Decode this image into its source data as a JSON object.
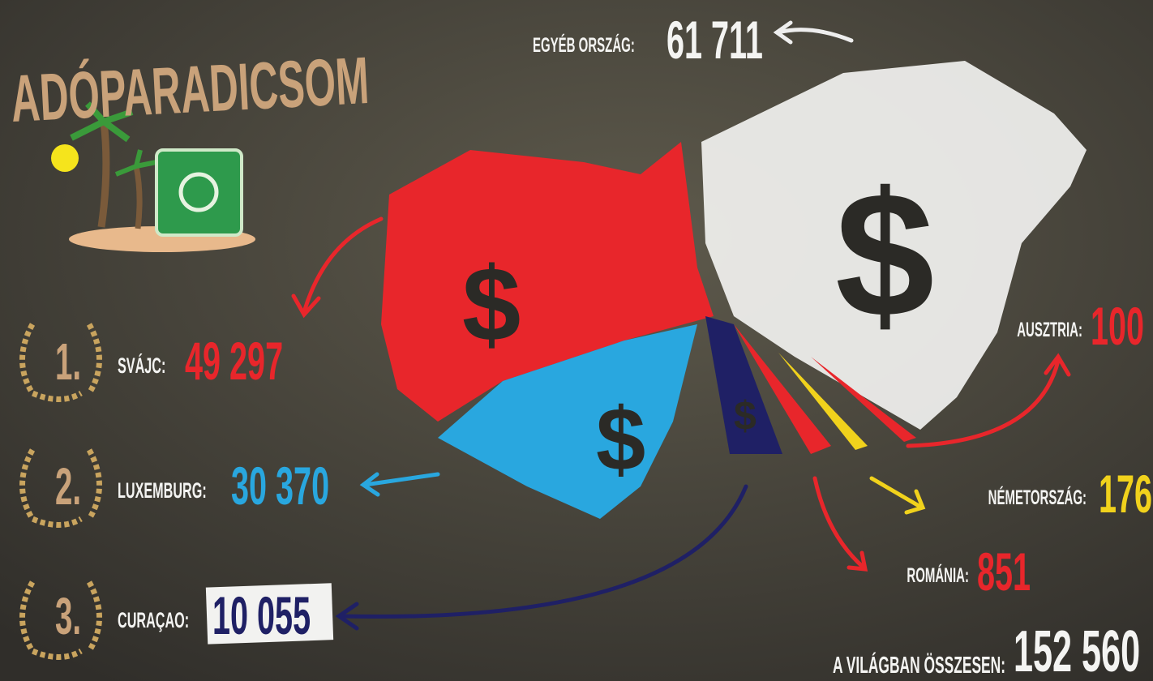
{
  "title": "ADÓPARADICSOM",
  "ranking": [
    {
      "rank": "1.",
      "country": "SVÁJC:",
      "value": "49 297"
    },
    {
      "rank": "2.",
      "country": "LUXEMBURG:",
      "value": "30 370"
    },
    {
      "rank": "3.",
      "country": "CURAÇAO:",
      "value": "10 055"
    }
  ],
  "others": [
    {
      "country": "EGYÉB ORSZÁG:",
      "value": "61 711"
    },
    {
      "country": "AUSZTRIA:",
      "value": "100"
    },
    {
      "country": "NÉMETORSZÁG:",
      "value": "176"
    },
    {
      "country": "ROMÁNIA:",
      "value": "851"
    }
  ],
  "total": {
    "label": "A VILÁGBAN ÖSSZESEN:",
    "value": "152 560"
  }
}
